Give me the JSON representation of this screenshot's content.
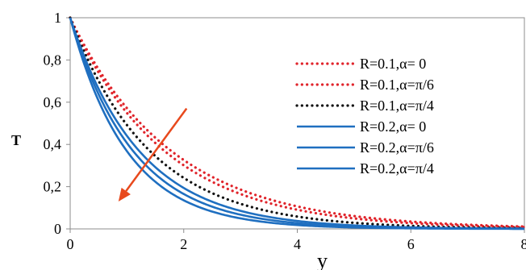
{
  "chart_data": {
    "type": "line",
    "title": "",
    "xlabel": "y",
    "ylabel": "T",
    "xlim": [
      0,
      8
    ],
    "ylim": [
      0,
      1
    ],
    "x_ticks": [
      0,
      2,
      4,
      6,
      8
    ],
    "x_tick_labels": [
      "0",
      "2",
      "4",
      "6",
      "8"
    ],
    "y_ticks": [
      0,
      0.2,
      0.4,
      0.6,
      0.8,
      1
    ],
    "y_tick_labels": [
      "0",
      "0,2",
      "0,4",
      "0,6",
      "0,8",
      "1"
    ],
    "grid": false,
    "legend_position": "upper-right",
    "series": [
      {
        "name": "R=0.1,α= 0",
        "style": "dotted",
        "color": "#e0242b",
        "decay": 0.56
      },
      {
        "name": "R=0.1,α=π/6",
        "style": "dotted",
        "color": "#e0242b",
        "decay": 0.6
      },
      {
        "name": "R=0.1,α=π/4",
        "style": "dotted",
        "color": "#111111",
        "decay": 0.71
      },
      {
        "name": "R=0.2,α= 0",
        "style": "solid",
        "color": "#1f6fc0",
        "decay": 0.82
      },
      {
        "name": "R=0.2,α=π/6",
        "style": "solid",
        "color": "#1f6fc0",
        "decay": 0.9
      },
      {
        "name": "R=0.2,α=π/4",
        "style": "solid",
        "color": "#1f6fc0",
        "decay": 1.0
      }
    ],
    "annotation": {
      "type": "arrow",
      "color": "#e8491d",
      "from": {
        "x": 2.05,
        "y": 0.57
      },
      "to": {
        "x": 0.85,
        "y": 0.13
      }
    }
  }
}
